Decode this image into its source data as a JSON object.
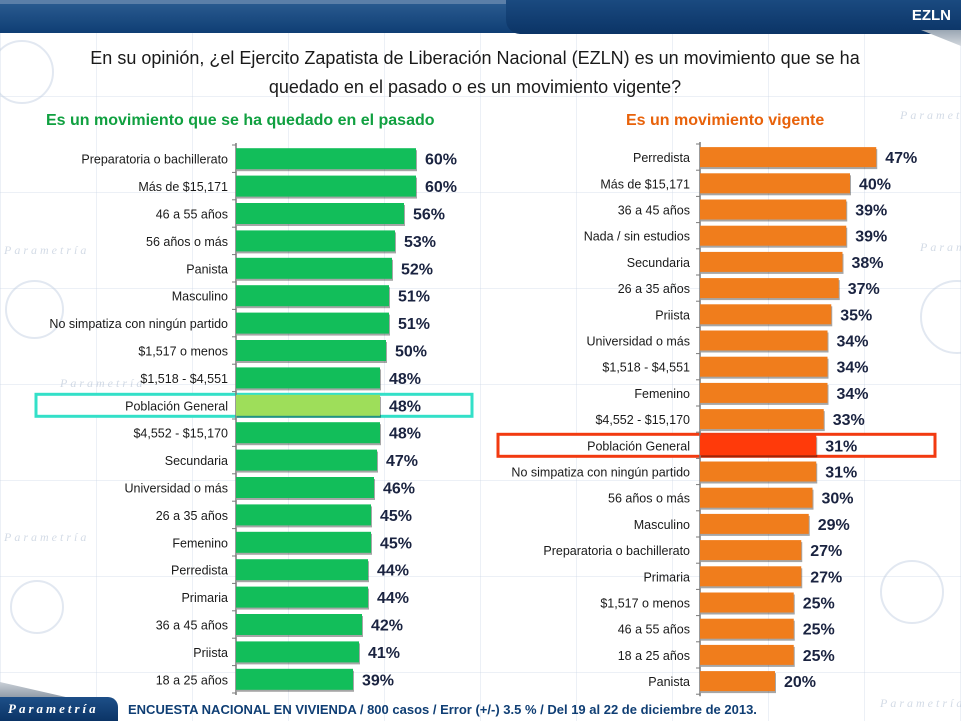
{
  "header": {
    "tab_title": "EZLN",
    "question": "En su opinión, ¿el Ejercito Zapatista de Liberación Nacional (EZLN) es un movimiento que se ha quedado en el pasado o es un movimiento vigente?"
  },
  "footer": {
    "brand": "Parametría",
    "note": "ENCUESTA NACIONAL EN VIVIENDA / 800 casos / Error (+/-) 3.5 % / Del 19 al 22 de diciembre de 2013."
  },
  "watermark": "Parametría",
  "colors": {
    "left_bar": "#12be5a",
    "left_highlight_bar": "#9ede5a",
    "left_highlight_box": "#33e0c8",
    "right_bar": "#f07d1c",
    "right_highlight_bar": "#ff3a0a",
    "right_highlight_box": "#f23a10",
    "value_text": "#1a2340"
  },
  "chart_data": [
    {
      "type": "bar",
      "orientation": "horizontal",
      "title": "Es un movimiento que se ha quedado en el pasado",
      "unit": "%",
      "highlight": "Población General",
      "xlim": [
        0,
        100
      ],
      "grid": false,
      "categories": [
        "Preparatoria o bachillerato",
        "Más de $15,171",
        "46 a 55 años",
        "56 años o más",
        "Panista",
        "Masculino",
        "No simpatiza con ningún partido",
        "$1,517 o menos",
        "$1,518 - $4,551",
        "Población General",
        "$4,552 - $15,170",
        "Secundaria",
        "Universidad o más",
        "26 a 35 años",
        "Femenino",
        "Perredista",
        "Primaria",
        "36 a 45 años",
        "Priista",
        "18 a 25 años"
      ],
      "values": [
        60,
        60,
        56,
        53,
        52,
        51,
        51,
        50,
        48,
        48,
        48,
        47,
        46,
        45,
        45,
        44,
        44,
        42,
        41,
        39
      ],
      "labels": [
        "60%",
        "60%",
        "56%",
        "53%",
        "52%",
        "51%",
        "51%",
        "50%",
        "48%",
        "48%",
        "48%",
        "47%",
        "46%",
        "45%",
        "45%",
        "44%",
        "44%",
        "42%",
        "41%",
        "39%"
      ]
    },
    {
      "type": "bar",
      "orientation": "horizontal",
      "title": "Es un movimiento vigente",
      "unit": "%",
      "highlight": "Población General",
      "xlim": [
        0,
        100
      ],
      "grid": false,
      "categories": [
        "Perredista",
        "Más de $15,171",
        "36 a 45 años",
        "Nada / sin estudios",
        "Secundaria",
        "26 a 35 años",
        "Priista",
        "Universidad o más",
        "$1,518 - $4,551",
        "Femenino",
        "$4,552 - $15,170",
        "Población General",
        "No simpatiza con ningún partido",
        "56 años o más",
        "Masculino",
        "Preparatoria o bachillerato",
        "Primaria",
        "$1,517 o menos",
        "46 a 55 años",
        "18 a 25 años",
        "Panista"
      ],
      "values": [
        47,
        40,
        39,
        39,
        38,
        37,
        35,
        34,
        34,
        34,
        33,
        31,
        31,
        30,
        29,
        27,
        27,
        25,
        25,
        25,
        20
      ],
      "labels": [
        "47%",
        "40%",
        "39%",
        "39%",
        "38%",
        "37%",
        "35%",
        "34%",
        "34%",
        "34%",
        "33%",
        "31%",
        "31%",
        "30%",
        "29%",
        "27%",
        "27%",
        "25%",
        "25%",
        "25%",
        "20%"
      ]
    }
  ]
}
